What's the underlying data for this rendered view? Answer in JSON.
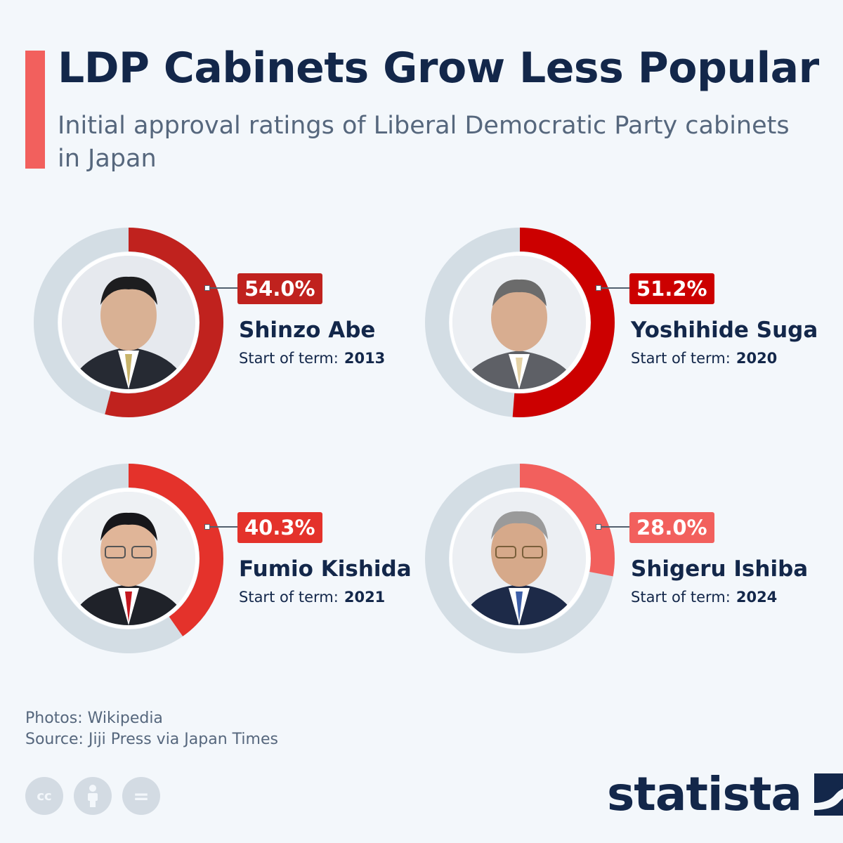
{
  "header": {
    "title": "LDP Cabinets Grow Less Popular",
    "subtitle": "Initial approval ratings of Liberal Democratic Party cabinets in Japan"
  },
  "chart_data": {
    "type": "pie",
    "title": "LDP Cabinets Grow Less Popular",
    "subtitle": "Initial approval ratings of Liberal Democratic Party cabinets in Japan",
    "value_labels": [
      "54.0%",
      "51.2%",
      "40.3%",
      "28.0%"
    ],
    "term_label": "Start of term:",
    "series": [
      {
        "name": "Shinzo Abe",
        "value": 54.0,
        "start_year": "2013",
        "color": "#c0221e"
      },
      {
        "name": "Yoshihide Suga",
        "value": 51.2,
        "start_year": "2020",
        "color": "#cc0000"
      },
      {
        "name": "Fumio Kishida",
        "value": 40.3,
        "start_year": "2021",
        "color": "#e4322b"
      },
      {
        "name": "Shigeru Ishiba",
        "value": 28.0,
        "start_year": "2024",
        "color": "#f2605d"
      }
    ],
    "track_color": "#d3dde4"
  },
  "footer": {
    "photos_credit": "Photos: Wikipedia",
    "source": "Source: Jiji Press via Japan Times",
    "license_icons": [
      "cc-icon",
      "attribution-icon",
      "no-derivatives-icon"
    ],
    "cc_label": "cc",
    "nd_label": "=",
    "brand": "statista"
  }
}
